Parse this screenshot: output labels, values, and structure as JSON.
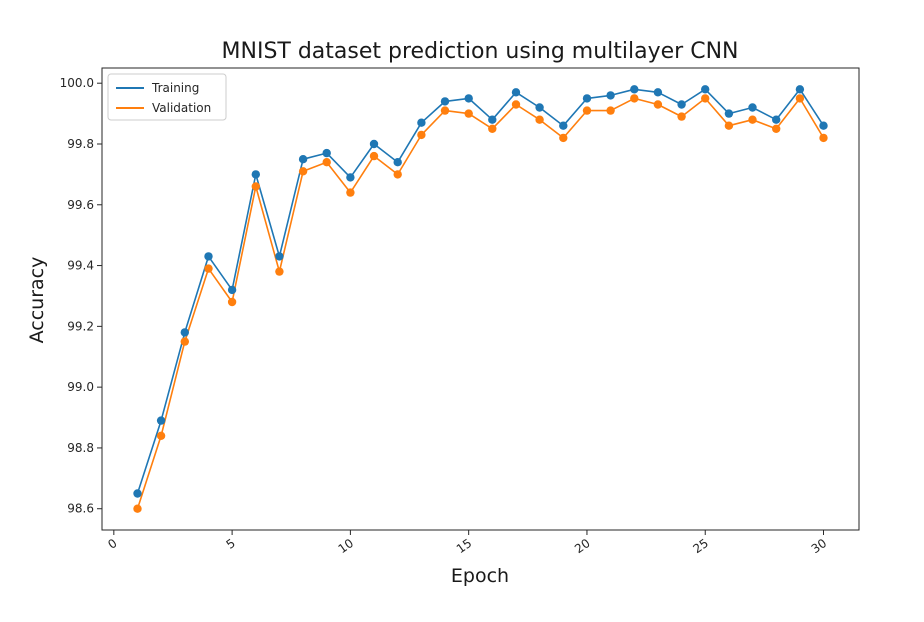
{
  "chart_data": {
    "type": "line",
    "title": "MNIST dataset prediction using multilayer CNN",
    "xlabel": "Epoch",
    "ylabel": "Accuracy",
    "xlim": [
      -0.5,
      31.5
    ],
    "ylim": [
      98.53,
      100.05
    ],
    "xticks": [
      0,
      5,
      10,
      15,
      20,
      25,
      30
    ],
    "yticks": [
      98.6,
      98.8,
      99.0,
      99.2,
      99.4,
      99.6,
      99.8,
      100.0
    ],
    "ytick_labels": [
      "98.6",
      "98.8",
      "99.0",
      "99.2",
      "99.4",
      "99.6",
      "99.8",
      "100.0"
    ],
    "grid": false,
    "legend_position": "top-left",
    "x": [
      1,
      2,
      3,
      4,
      5,
      6,
      7,
      8,
      9,
      10,
      11,
      12,
      13,
      14,
      15,
      16,
      17,
      18,
      19,
      20,
      21,
      22,
      23,
      24,
      25,
      26,
      27,
      28,
      29,
      30
    ],
    "series": [
      {
        "name": "Training",
        "color": "#1f77b4",
        "values": [
          98.65,
          98.89,
          99.18,
          99.43,
          99.32,
          99.7,
          99.43,
          99.75,
          99.77,
          99.69,
          99.8,
          99.74,
          99.87,
          99.94,
          99.95,
          99.88,
          99.97,
          99.92,
          99.86,
          99.95,
          99.96,
          99.98,
          99.97,
          99.93,
          99.98,
          99.9,
          99.92,
          99.88,
          99.98,
          99.86
        ]
      },
      {
        "name": "Validation",
        "color": "#ff7f0e",
        "values": [
          98.6,
          98.84,
          99.15,
          99.39,
          99.28,
          99.66,
          99.38,
          99.71,
          99.74,
          99.64,
          99.76,
          99.7,
          99.83,
          99.91,
          99.9,
          99.85,
          99.93,
          99.88,
          99.82,
          99.91,
          99.91,
          99.95,
          99.93,
          99.89,
          99.95,
          99.86,
          99.88,
          99.85,
          99.95,
          99.82
        ]
      }
    ]
  }
}
